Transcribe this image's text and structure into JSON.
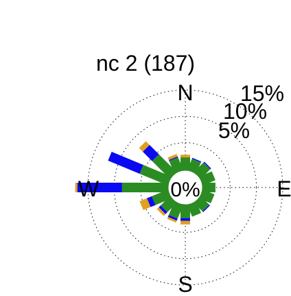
{
  "chart_data": {
    "type": "polar-stacked-bar",
    "title": "nc 2 (187)",
    "center_label": "0%",
    "directions": [
      "N",
      "E",
      "S",
      "W"
    ],
    "ring_labels": [
      "5%",
      "10%",
      "15%"
    ],
    "rings": [
      5,
      10,
      15
    ],
    "rmax": 15,
    "colors": {
      "inner": "#2b8c24",
      "middle": "#0a0af2",
      "outer": "#e0a020"
    },
    "series_note": "stacked segments inner→outer: green, blue, orange",
    "sectors": [
      {
        "angle": 0,
        "green": 2.2,
        "blue": 0.0,
        "orange": 0.5
      },
      {
        "angle": 22.5,
        "green": 2.0,
        "blue": 0.2,
        "orange": 0.0
      },
      {
        "angle": 45,
        "green": 2.3,
        "blue": 0.2,
        "orange": 0.0
      },
      {
        "angle": 67.5,
        "green": 2.3,
        "blue": 0.0,
        "orange": 0.0
      },
      {
        "angle": 90,
        "green": 2.2,
        "blue": 0.0,
        "orange": 0.0
      },
      {
        "angle": 112.5,
        "green": 2.1,
        "blue": 0.0,
        "orange": 0.0
      },
      {
        "angle": 135,
        "green": 2.0,
        "blue": 0.2,
        "orange": 0.0
      },
      {
        "angle": 157.5,
        "green": 2.1,
        "blue": 0.0,
        "orange": 0.0
      },
      {
        "angle": 180,
        "green": 2.3,
        "blue": 0.5,
        "orange": 0.7
      },
      {
        "angle": 202.5,
        "green": 2.5,
        "blue": 0.4,
        "orange": 0.4
      },
      {
        "angle": 225,
        "green": 2.2,
        "blue": 0.5,
        "orange": 0.5
      },
      {
        "angle": 247.5,
        "green": 3.0,
        "blue": 1.0,
        "orange": 1.5
      },
      {
        "angle": 270,
        "green": 8.5,
        "blue": 8.5,
        "orange": 0.4
      },
      {
        "angle": 292.5,
        "green": 5.5,
        "blue": 6.5,
        "orange": 0.0
      },
      {
        "angle": 315,
        "green": 4.5,
        "blue": 2.5,
        "orange": 1.0
      },
      {
        "angle": 337.5,
        "green": 2.3,
        "blue": 0.2,
        "orange": 0.5
      }
    ]
  }
}
